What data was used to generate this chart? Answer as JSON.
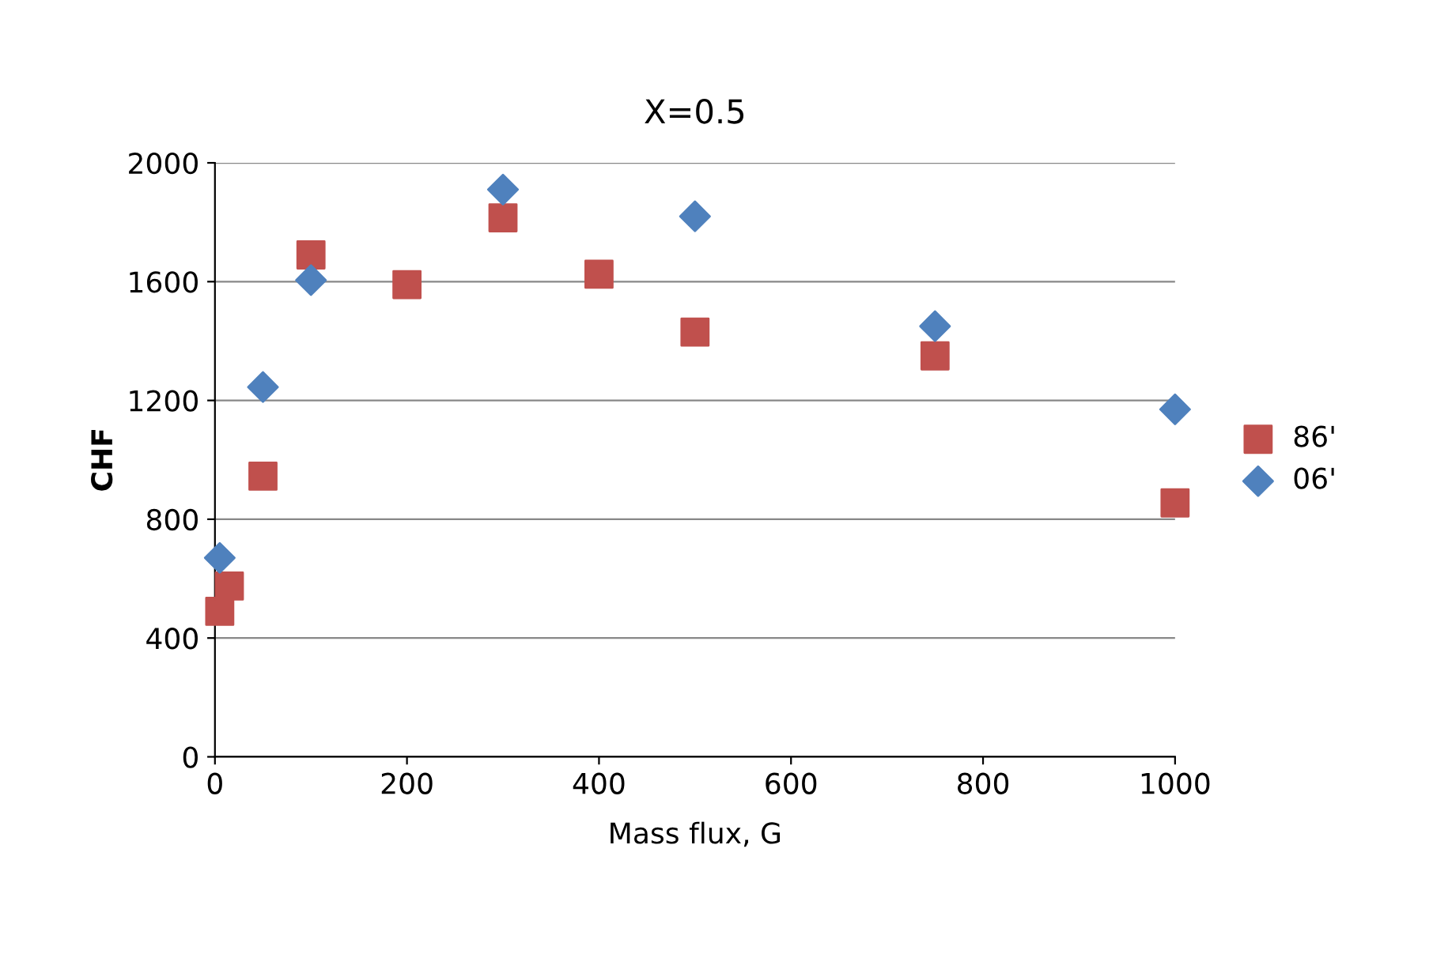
{
  "chart_data": {
    "type": "scatter",
    "title": "X=0.5",
    "xlabel": "Mass flux, G",
    "ylabel": "CHF",
    "xlim": [
      0,
      1000
    ],
    "xticks": [
      0,
      200,
      400,
      600,
      800,
      1000
    ],
    "ylim": [
      0,
      2000
    ],
    "yticks": [
      0,
      400,
      800,
      1200,
      1600,
      2000
    ],
    "grid": "y",
    "legend": "right",
    "series": [
      {
        "name": "86'",
        "color": "#c0504d",
        "marker": "square",
        "x": [
          5,
          15,
          50,
          100,
          200,
          300,
          400,
          500,
          750,
          1000
        ],
        "values": [
          490,
          575,
          945,
          1690,
          1590,
          1815,
          1625,
          1430,
          1350,
          855
        ]
      },
      {
        "name": "06'",
        "color": "#4f81bd",
        "marker": "diamond",
        "x": [
          5,
          50,
          100,
          300,
          500,
          750,
          1000
        ],
        "values": [
          670,
          1245,
          1605,
          1910,
          1820,
          1450,
          1170
        ]
      }
    ]
  }
}
